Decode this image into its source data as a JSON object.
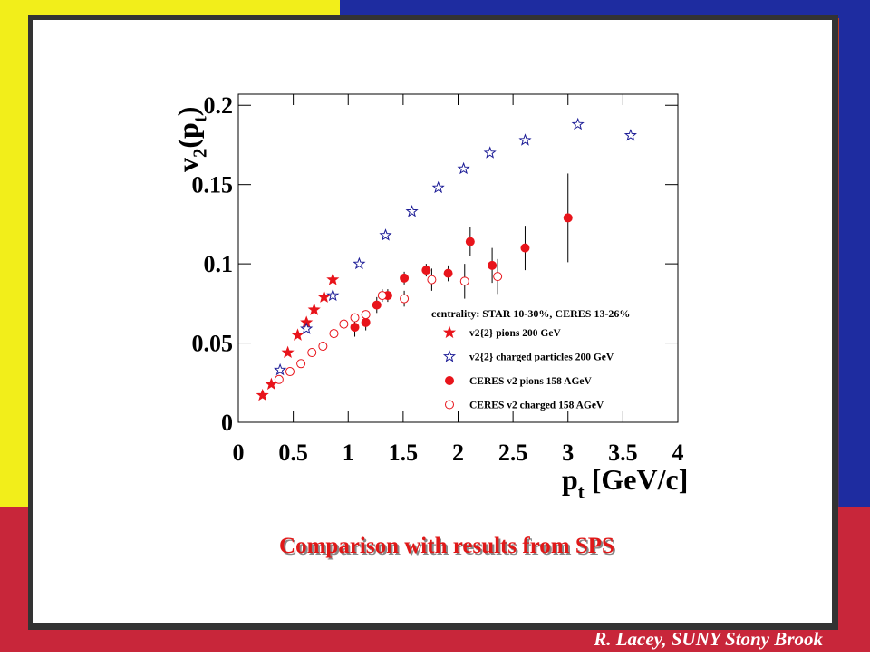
{
  "chart_data": {
    "type": "scatter",
    "xlabel": [
      "p",
      "t",
      " [GeV/c]"
    ],
    "ylabel": [
      "v",
      "2",
      "(p",
      "t",
      ")"
    ],
    "xlim": [
      0,
      4
    ],
    "ylim": [
      0,
      0.207
    ],
    "xticks": [
      0,
      0.5,
      1,
      1.5,
      2,
      2.5,
      3,
      3.5,
      4
    ],
    "yticks": [
      0,
      0.05,
      0.1,
      0.15,
      0.2
    ],
    "legend_title": "centrality: STAR 10-30%, CERES 13-26%",
    "series": [
      {
        "name": "v2{2} pions 200 GeV",
        "color": "#e8141b",
        "marker": "filled-star",
        "x": [
          0.22,
          0.3,
          0.45,
          0.54,
          0.62,
          0.69,
          0.78,
          0.86
        ],
        "values": [
          0.017,
          0.024,
          0.044,
          0.055,
          0.063,
          0.071,
          0.079,
          0.09
        ]
      },
      {
        "name": "v2{2} charged particles 200 GeV",
        "color": "#1c1c96",
        "marker": "open-star",
        "x": [
          0.38,
          0.62,
          0.86,
          1.1,
          1.34,
          1.58,
          1.82,
          2.05,
          2.29,
          2.61,
          3.09,
          3.57
        ],
        "values": [
          0.033,
          0.059,
          0.08,
          0.1,
          0.118,
          0.133,
          0.148,
          0.16,
          0.17,
          0.178,
          0.188,
          0.181
        ]
      },
      {
        "name": "CERES v2 pions 158 AGeV",
        "color": "#e8141b",
        "marker": "filled-circle",
        "x": [
          1.06,
          1.16,
          1.26,
          1.36,
          1.51,
          1.71,
          1.91,
          2.11,
          2.31,
          2.61,
          3.0
        ],
        "values": [
          0.06,
          0.063,
          0.074,
          0.08,
          0.091,
          0.096,
          0.094,
          0.114,
          0.099,
          0.11,
          0.129
        ],
        "errors": [
          0.006,
          0.005,
          0.005,
          0.004,
          0.004,
          0.004,
          0.005,
          0.009,
          0.011,
          0.014,
          0.028
        ]
      },
      {
        "name": "CERES v2 charged 158 AGeV",
        "color": "#e8141b",
        "marker": "open-circle",
        "x": [
          0.37,
          0.47,
          0.57,
          0.67,
          0.77,
          0.87,
          0.96,
          1.06,
          1.16,
          1.31,
          1.51,
          1.76,
          2.06,
          2.36
        ],
        "values": [
          0.027,
          0.032,
          0.037,
          0.044,
          0.048,
          0.056,
          0.062,
          0.066,
          0.068,
          0.08,
          0.078,
          0.09,
          0.089,
          0.092
        ],
        "errors": [
          null,
          null,
          null,
          null,
          null,
          null,
          null,
          null,
          null,
          0.004,
          0.005,
          0.007,
          0.011,
          0.011
        ]
      }
    ]
  },
  "caption": "Comparison with results from SPS",
  "footer": "R. Lacey, SUNY  Stony Brook"
}
